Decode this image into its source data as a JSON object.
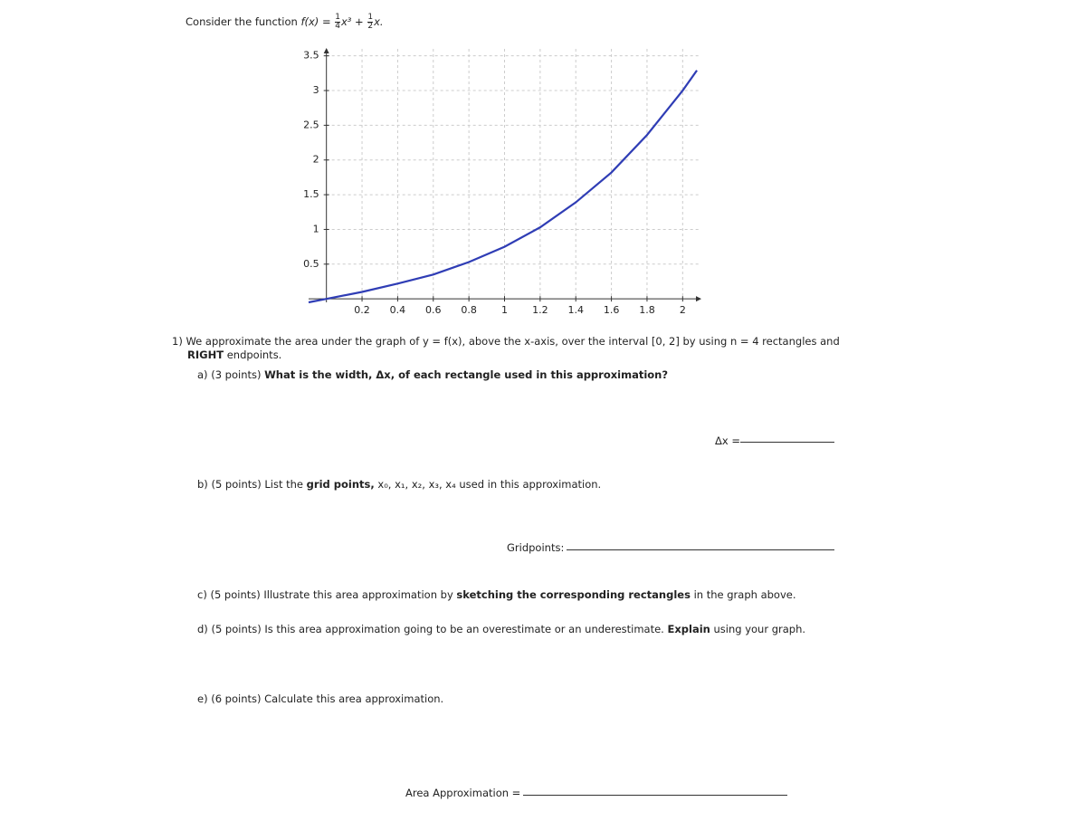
{
  "intro": {
    "text": "Consider the function",
    "lhs": "f(x) =",
    "frac1": [
      "1",
      "4"
    ],
    "term1": "x³ +",
    "frac2": [
      "1",
      "2"
    ],
    "term2": "x."
  },
  "chart_data": {
    "type": "line",
    "x": [
      -0.1,
      0,
      0.2,
      0.4,
      0.6,
      0.8,
      1,
      1.2,
      1.4,
      1.6,
      1.8,
      2,
      2.08
    ],
    "series": [
      {
        "color": "#2f3db5",
        "values": [
          -0.05,
          0,
          0.1,
          0.22,
          0.35,
          0.53,
          0.75,
          1.03,
          1.39,
          1.82,
          2.36,
          3,
          3.29
        ]
      }
    ],
    "xlim": [
      -0.1,
      2.1
    ],
    "ylim": [
      -0.05,
      3.6
    ],
    "xticks": [
      0.2,
      0.4,
      0.6,
      0.8,
      1,
      1.2,
      1.4,
      1.6,
      1.8,
      2
    ],
    "yticks": [
      0.5,
      1,
      1.5,
      2,
      2.5,
      3,
      3.5
    ],
    "grid": true
  },
  "q1": {
    "num": "1)",
    "text": "We approximate the area under the graph of y = f(x), above the x-axis, over the interval [0, 2] by using n = 4 rectangles and",
    "bold": "RIGHT",
    "rest": "endpoints."
  },
  "qa": {
    "label": "a)",
    "points": "(3 points)",
    "bold": "What is the width, Δx, of each rectangle used in this approximation?",
    "answer": "Δx ="
  },
  "qb": {
    "label": "b)",
    "points": "(5 points)",
    "pre": "List the",
    "bold": "grid points,",
    "rest": "x₀, x₁, x₂, x₃, x₄ used in this approximation.",
    "answer": "Gridpoints:"
  },
  "qc": {
    "label": "c)",
    "points": "(5 points)",
    "pre": "Illustrate this area approximation by",
    "bold": "sketching the corresponding rectangles",
    "rest": "in the graph above."
  },
  "qd": {
    "label": "d)",
    "points": "(5 points)",
    "pre": "Is this area approximation going to be an overestimate or an underestimate.",
    "bold": "Explain",
    "rest": "using your graph."
  },
  "qe": {
    "label": "e)",
    "points": "(6 points)",
    "pre": "Calculate this area approximation.",
    "answer": "Area Approximation ="
  }
}
